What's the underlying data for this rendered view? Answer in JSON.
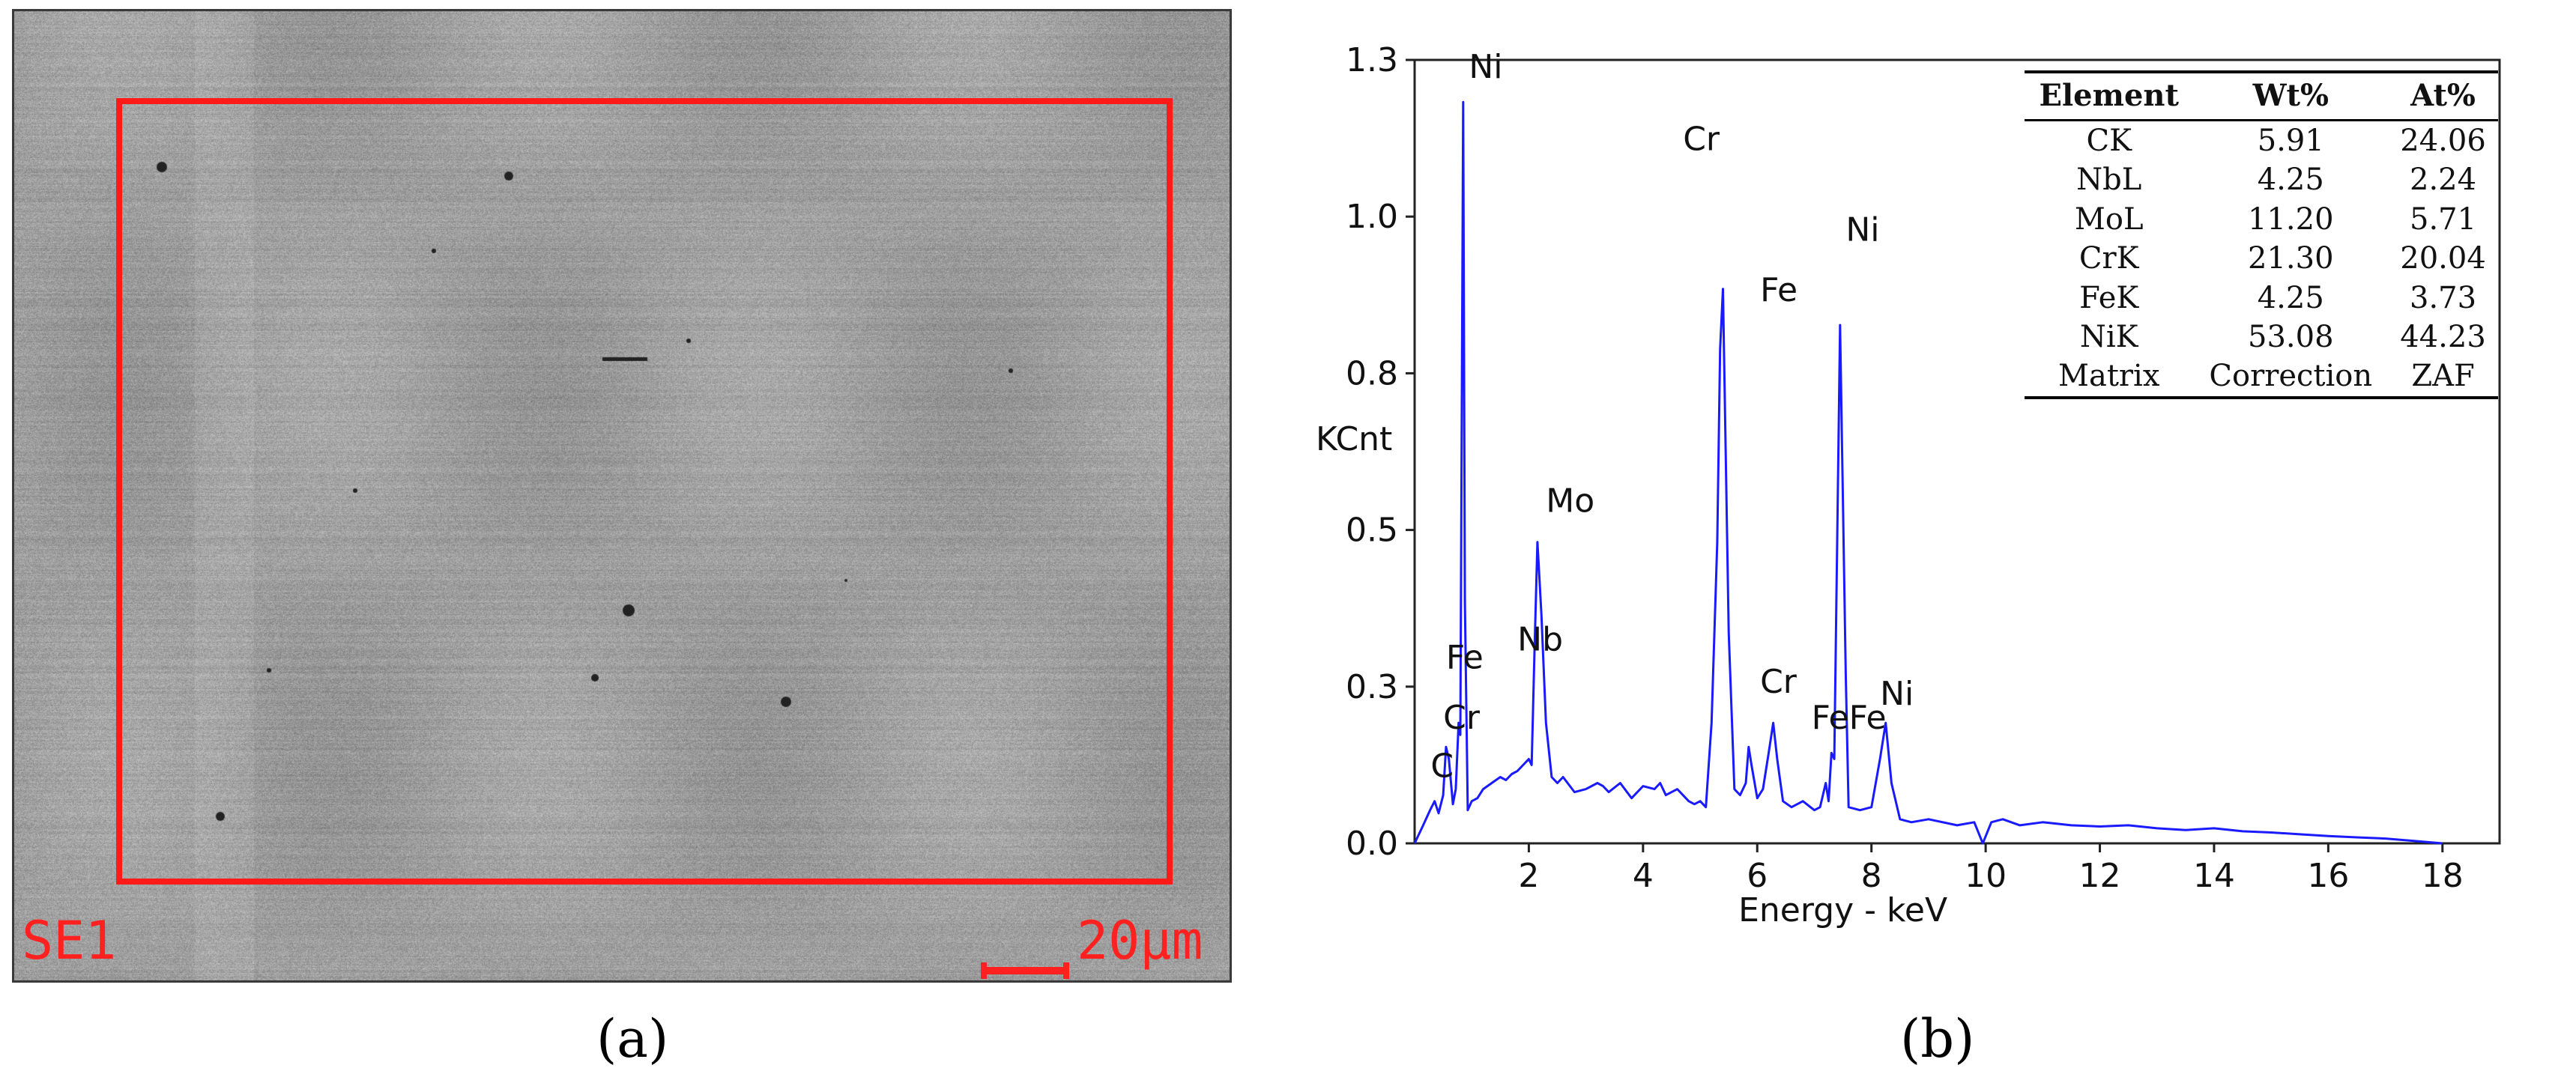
{
  "panel_a": {
    "caption": "(a)",
    "mode_label": "SE1",
    "scale_label": "20µm",
    "colors": {
      "annotation": "#ff2020"
    }
  },
  "panel_b": {
    "caption": "(b)",
    "colors": {
      "spectrum": "#1a1aff"
    }
  },
  "chart_data": {
    "type": "line",
    "title": "",
    "xlabel": "Energy - keV",
    "ylabel": "KCnt",
    "xlim": [
      0,
      19
    ],
    "ylim": [
      0,
      1.3
    ],
    "x_ticks": [
      2,
      4,
      6,
      8,
      10,
      12,
      14,
      16,
      18
    ],
    "y_ticks": [
      "0.0",
      "0.3",
      "0.5",
      "0.8",
      "1.0",
      "1.3"
    ],
    "y_tick_values": [
      0,
      0.26,
      0.52,
      0.78,
      1.04,
      1.3
    ],
    "grid": false,
    "legend": "none",
    "series": [
      {
        "x": [
          0.0,
          0.15,
          0.27,
          0.35,
          0.42,
          0.5,
          0.55,
          0.6,
          0.67,
          0.72,
          0.77,
          0.8,
          0.85,
          0.88,
          0.93,
          1.0,
          1.1,
          1.2,
          1.35,
          1.5,
          1.6,
          1.7,
          1.8,
          1.9,
          2.0,
          2.05,
          2.1,
          2.15,
          2.22,
          2.3,
          2.4,
          2.5,
          2.6,
          2.8,
          3.0,
          3.2,
          3.3,
          3.4,
          3.6,
          3.8,
          4.0,
          4.2,
          4.3,
          4.4,
          4.6,
          4.8,
          4.9,
          5.0,
          5.1,
          5.2,
          5.3,
          5.35,
          5.4,
          5.5,
          5.6,
          5.7,
          5.8,
          5.85,
          5.9,
          6.0,
          6.1,
          6.2,
          6.28,
          6.35,
          6.45,
          6.6,
          6.8,
          7.0,
          7.1,
          7.2,
          7.25,
          7.3,
          7.35,
          7.45,
          7.55,
          7.6,
          7.8,
          8.0,
          8.15,
          8.25,
          8.35,
          8.5,
          8.7,
          9.0,
          9.5,
          9.8,
          9.95,
          10.1,
          10.3,
          10.6,
          11.0,
          11.5,
          12.0,
          12.5,
          13.0,
          13.5,
          14.0,
          14.5,
          15.0,
          15.5,
          16.0,
          16.5,
          17.0,
          17.5,
          18.0
        ],
        "y": [
          0.0,
          0.03,
          0.055,
          0.07,
          0.05,
          0.08,
          0.16,
          0.14,
          0.065,
          0.09,
          0.2,
          0.18,
          1.23,
          0.4,
          0.055,
          0.07,
          0.075,
          0.09,
          0.1,
          0.11,
          0.105,
          0.115,
          0.12,
          0.13,
          0.14,
          0.13,
          0.32,
          0.5,
          0.38,
          0.2,
          0.11,
          0.1,
          0.11,
          0.085,
          0.09,
          0.1,
          0.095,
          0.085,
          0.1,
          0.075,
          0.095,
          0.09,
          0.1,
          0.08,
          0.09,
          0.07,
          0.065,
          0.07,
          0.06,
          0.2,
          0.5,
          0.82,
          0.92,
          0.35,
          0.09,
          0.08,
          0.1,
          0.16,
          0.13,
          0.075,
          0.09,
          0.15,
          0.2,
          0.14,
          0.07,
          0.06,
          0.07,
          0.055,
          0.06,
          0.1,
          0.07,
          0.15,
          0.14,
          0.86,
          0.28,
          0.06,
          0.055,
          0.06,
          0.14,
          0.2,
          0.1,
          0.04,
          0.035,
          0.04,
          0.03,
          0.035,
          0.0,
          0.035,
          0.04,
          0.03,
          0.035,
          0.03,
          0.028,
          0.03,
          0.025,
          0.022,
          0.025,
          0.02,
          0.018,
          0.015,
          0.012,
          0.01,
          0.008,
          0.004,
          0.0
        ]
      }
    ],
    "annotations": [
      {
        "text": "Ni",
        "x": 0.95,
        "y": 1.27
      },
      {
        "text": "Fe",
        "x": 0.55,
        "y": 0.29
      },
      {
        "text": "Cr",
        "x": 0.5,
        "y": 0.19
      },
      {
        "text": "C",
        "x": 0.28,
        "y": 0.11
      },
      {
        "text": "Nb",
        "x": 1.8,
        "y": 0.32
      },
      {
        "text": "Mo",
        "x": 2.3,
        "y": 0.55
      },
      {
        "text": "Cr",
        "x": 4.7,
        "y": 1.15
      },
      {
        "text": "Fe",
        "x": 6.05,
        "y": 0.9
      },
      {
        "text": "Ni",
        "x": 7.55,
        "y": 1.0
      },
      {
        "text": "Cr",
        "x": 6.05,
        "y": 0.25
      },
      {
        "text": "FeFe",
        "x": 6.95,
        "y": 0.19
      },
      {
        "text": "Ni",
        "x": 8.15,
        "y": 0.23
      }
    ],
    "table": {
      "columns": [
        "Element",
        "Wt%",
        "At%"
      ],
      "rows": [
        [
          "CK",
          "5.91",
          "24.06"
        ],
        [
          "NbL",
          "4.25",
          "2.24"
        ],
        [
          "MoL",
          "11.20",
          "5.71"
        ],
        [
          "CrK",
          "21.30",
          "20.04"
        ],
        [
          "FeK",
          "4.25",
          "3.73"
        ],
        [
          "NiK",
          "53.08",
          "44.23"
        ],
        [
          "Matrix",
          "Correction",
          "ZAF"
        ]
      ]
    }
  }
}
